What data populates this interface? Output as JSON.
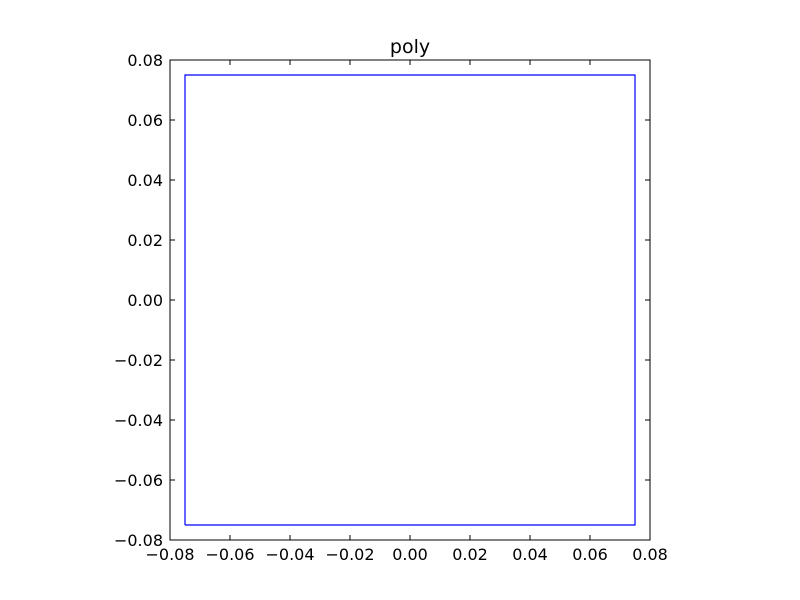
{
  "chart_data": {
    "type": "line",
    "title": "poly",
    "xlabel": "",
    "ylabel": "",
    "xlim": [
      -0.08,
      0.08
    ],
    "ylim": [
      -0.08,
      0.08
    ],
    "grid": false,
    "aspect": "equal",
    "x_ticks": [
      -0.08,
      -0.06,
      -0.04,
      -0.02,
      0.0,
      0.02,
      0.04,
      0.06,
      0.08
    ],
    "x_tick_labels": [
      "−0.08",
      "−0.06",
      "−0.04",
      "−0.02",
      "0.00",
      "0.02",
      "0.04",
      "0.06",
      "0.08"
    ],
    "y_ticks": [
      -0.08,
      -0.06,
      -0.04,
      -0.02,
      0.0,
      0.02,
      0.04,
      0.06,
      0.08
    ],
    "y_tick_labels": [
      "−0.08",
      "−0.06",
      "−0.04",
      "−0.02",
      "0.00",
      "0.02",
      "0.04",
      "0.06",
      "0.08"
    ],
    "series": [
      {
        "color": "#0000ff",
        "closed": true,
        "x": [
          -0.075,
          0.075,
          0.075,
          -0.075,
          -0.075
        ],
        "y": [
          -0.075,
          -0.075,
          0.075,
          0.075,
          -0.075
        ]
      }
    ]
  }
}
